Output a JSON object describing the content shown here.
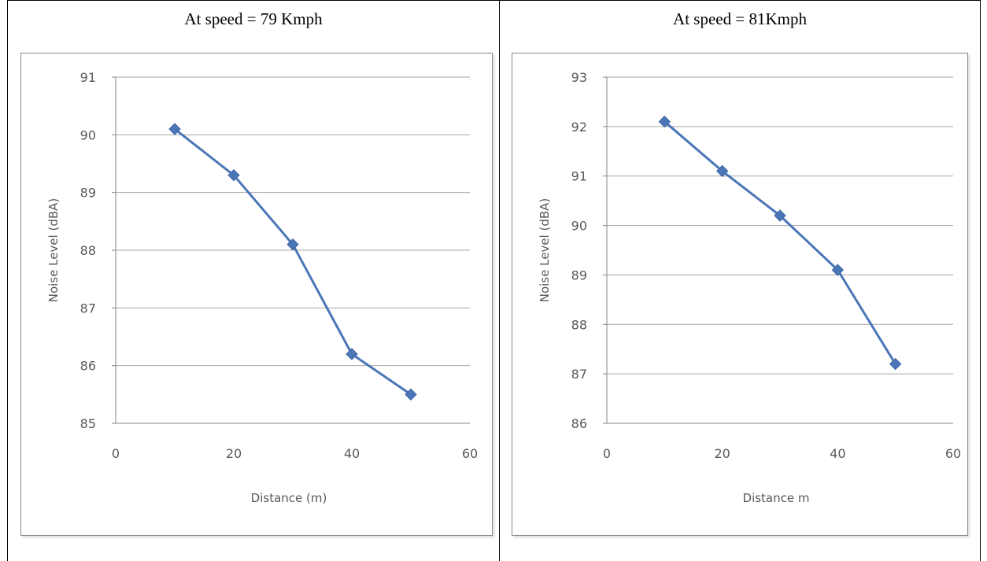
{
  "titles": [
    "At speed = 79 Kmph",
    "At speed = 81Kmph"
  ],
  "colors": {
    "series": "#4a76b8",
    "grid": "#a6a6a6",
    "axis_text": "#595959"
  },
  "chart_data": [
    {
      "type": "line",
      "title": "At speed = 79 Kmph",
      "xlabel": "Distance (m)",
      "ylabel": "Noise Level (dBA)",
      "xlim": [
        0,
        60
      ],
      "ylim": [
        85,
        91
      ],
      "xticks": [
        0,
        20,
        40,
        60
      ],
      "yticks": [
        85,
        86,
        87,
        88,
        89,
        90,
        91
      ],
      "grid": "horizontal",
      "legend": "none",
      "series": [
        {
          "x": [
            10,
            20,
            30,
            40,
            50
          ],
          "y": [
            90.1,
            89.3,
            88.1,
            86.2,
            85.5
          ],
          "marker": "diamond"
        }
      ]
    },
    {
      "type": "line",
      "title": "At speed = 81Kmph",
      "xlabel": "Distance m",
      "ylabel": "Noise Level (dBA)",
      "xlim": [
        0,
        60
      ],
      "ylim": [
        86,
        93
      ],
      "xticks": [
        0,
        20,
        40,
        60
      ],
      "yticks": [
        86,
        87,
        88,
        89,
        90,
        91,
        92,
        93
      ],
      "grid": "horizontal",
      "legend": "none",
      "series": [
        {
          "x": [
            10,
            20,
            30,
            40,
            50
          ],
          "y": [
            92.1,
            91.1,
            90.2,
            89.1,
            87.2
          ],
          "marker": "diamond"
        }
      ]
    }
  ]
}
